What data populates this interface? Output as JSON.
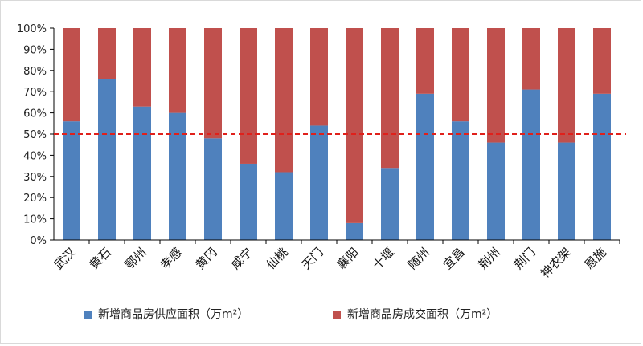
{
  "chart_data": {
    "type": "bar",
    "stacked": true,
    "percent": true,
    "categories": [
      "武汉",
      "黄石",
      "鄂州",
      "孝感",
      "黄冈",
      "咸宁",
      "仙桃",
      "天门",
      "襄阳",
      "十堰",
      "随州",
      "宜昌",
      "荆州",
      "荆门",
      "神农架",
      "恩施"
    ],
    "series": [
      {
        "name": "新增商品房供应面积（万m²）",
        "color": "#4f81bd",
        "values": [
          0.56,
          0.76,
          0.63,
          0.6,
          0.48,
          0.36,
          0.32,
          0.54,
          0.08,
          0.34,
          0.69,
          0.56,
          0.46,
          0.71,
          0.46,
          0.69
        ]
      },
      {
        "name": "新增商品房成交面积（万m²）",
        "color": "#c0504d",
        "values": [
          0.44,
          0.24,
          0.37,
          0.4,
          0.52,
          0.64,
          0.68,
          0.46,
          0.92,
          0.66,
          0.31,
          0.44,
          0.54,
          0.29,
          0.54,
          0.31
        ]
      }
    ],
    "ylim": [
      0,
      1
    ],
    "y_ticks": [
      "0%",
      "10%",
      "20%",
      "30%",
      "40%",
      "50%",
      "60%",
      "70%",
      "80%",
      "90%",
      "100%"
    ],
    "reference_line": {
      "value": 0.5,
      "color": "#e0201b",
      "style": "dashed"
    },
    "grid": false,
    "legend_position": "bottom",
    "title": "",
    "xlabel": "",
    "ylabel": ""
  }
}
